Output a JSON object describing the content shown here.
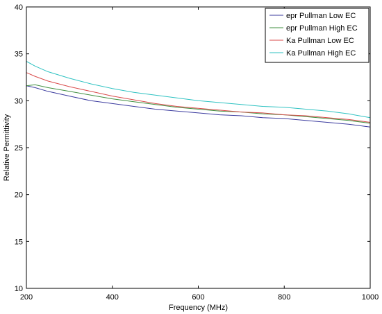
{
  "chart_data": {
    "type": "line",
    "title": "",
    "xlabel": "Frequency (MHz)",
    "ylabel": "Relative Permittivity",
    "xlim": [
      200,
      1000
    ],
    "ylim": [
      10,
      40
    ],
    "xticks": [
      200,
      400,
      600,
      800,
      1000
    ],
    "yticks": [
      10,
      15,
      20,
      25,
      30,
      35,
      40
    ],
    "grid": false,
    "legend_position": "top-right",
    "x": [
      200,
      220,
      250,
      300,
      350,
      400,
      450,
      500,
      550,
      600,
      650,
      700,
      750,
      800,
      850,
      900,
      950,
      1000
    ],
    "series": [
      {
        "name": "epr Pullman Low EC",
        "color": "#3a3a9e",
        "values": [
          31.6,
          31.4,
          31.0,
          30.5,
          30.0,
          29.7,
          29.4,
          29.1,
          28.9,
          28.7,
          28.5,
          28.4,
          28.2,
          28.1,
          27.9,
          27.7,
          27.5,
          27.2
        ]
      },
      {
        "name": "epr Pullman High EC",
        "color": "#3f8f3f",
        "values": [
          31.6,
          31.7,
          31.4,
          31.0,
          30.6,
          30.2,
          29.9,
          29.6,
          29.3,
          29.1,
          28.9,
          28.8,
          28.6,
          28.5,
          28.3,
          28.1,
          27.9,
          27.6
        ]
      },
      {
        "name": "Ka Pullman Low EC",
        "color": "#d94a4a",
        "values": [
          33.0,
          32.6,
          32.1,
          31.5,
          31.0,
          30.5,
          30.1,
          29.7,
          29.4,
          29.2,
          29.0,
          28.8,
          28.7,
          28.5,
          28.4,
          28.2,
          28.0,
          27.7
        ]
      },
      {
        "name": "Ka Pullman High EC",
        "color": "#2ec2c2",
        "values": [
          34.2,
          33.7,
          33.1,
          32.4,
          31.8,
          31.3,
          30.9,
          30.6,
          30.3,
          30.0,
          29.8,
          29.6,
          29.4,
          29.3,
          29.1,
          28.9,
          28.6,
          28.2
        ]
      }
    ]
  }
}
